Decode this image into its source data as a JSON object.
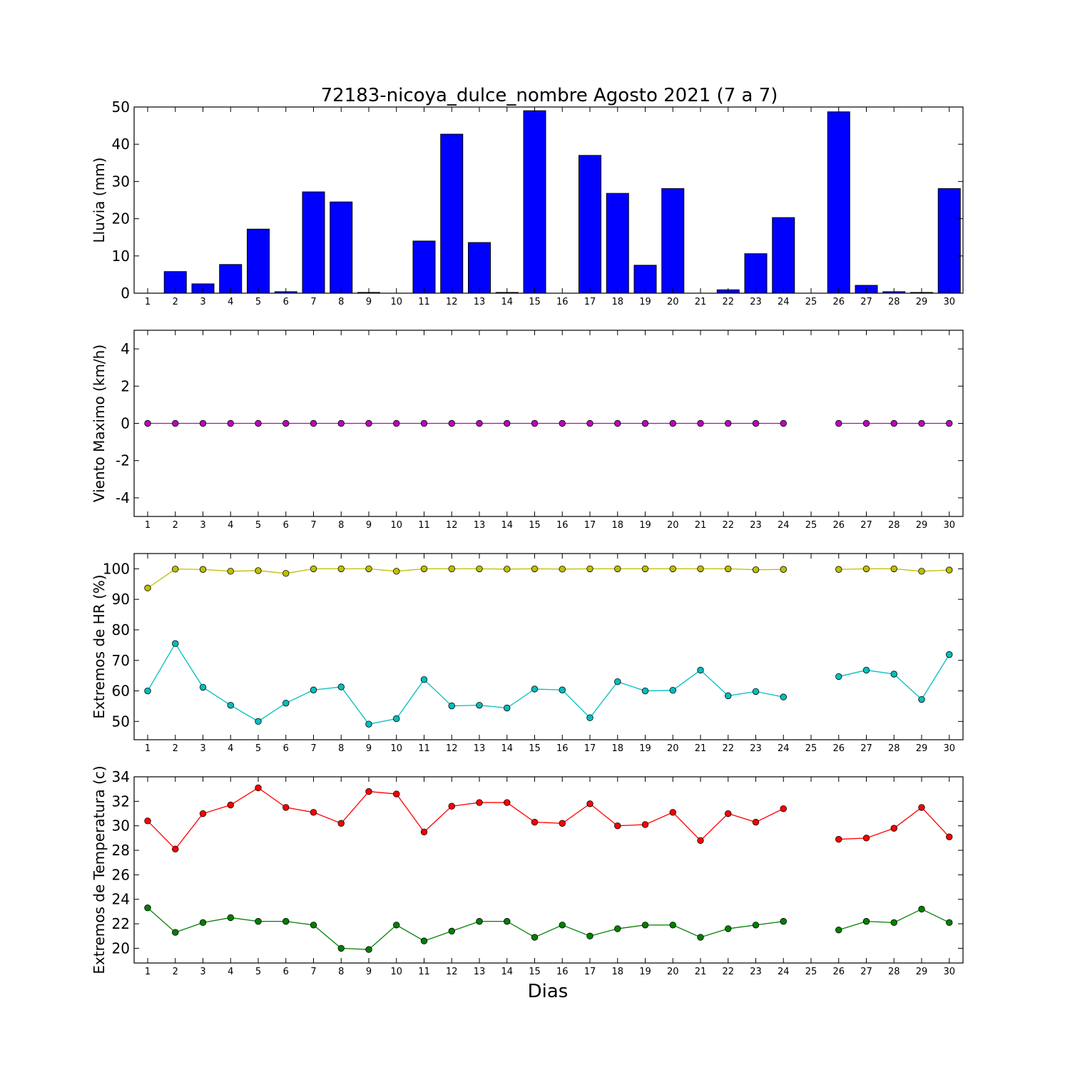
{
  "chart_data": [
    {
      "type": "bar",
      "title": "72183-nicoya_dulce_nombre Agosto 2021  (7 a 7)",
      "xlabel": "",
      "ylabel": "Lluvia (mm)",
      "ylim": [
        0,
        50
      ],
      "yticks": [
        0,
        10,
        20,
        30,
        40,
        50
      ],
      "categories": [
        "1",
        "2",
        "3",
        "4",
        "5",
        "6",
        "7",
        "8",
        "9",
        "10",
        "11",
        "12",
        "13",
        "14",
        "15",
        "16",
        "17",
        "18",
        "19",
        "20",
        "21",
        "22",
        "23",
        "24",
        "25",
        "26",
        "27",
        "28",
        "29",
        "30"
      ],
      "series": [
        {
          "color": "#0000ff",
          "values": [
            0,
            5.8,
            2.5,
            7.7,
            17.2,
            0.4,
            27.2,
            24.5,
            0.2,
            0,
            14.0,
            42.7,
            13.6,
            0.2,
            49.0,
            0,
            37.0,
            26.8,
            7.5,
            28.1,
            0,
            0.9,
            10.6,
            20.3,
            0,
            48.7,
            2.1,
            0.4,
            0.2,
            28.1
          ]
        }
      ]
    },
    {
      "type": "line",
      "xlabel": "",
      "ylabel": "Viento Maximo (km/h)",
      "ylim": [
        -5,
        5
      ],
      "yticks": [
        -4,
        -2,
        0,
        2,
        4
      ],
      "categories": [
        "1",
        "2",
        "3",
        "4",
        "5",
        "6",
        "7",
        "8",
        "9",
        "10",
        "11",
        "12",
        "13",
        "14",
        "15",
        "16",
        "17",
        "18",
        "19",
        "20",
        "21",
        "22",
        "23",
        "24",
        "25",
        "26",
        "27",
        "28",
        "29",
        "30"
      ],
      "series": [
        {
          "color": "#bf00bf",
          "values": [
            0,
            0,
            0,
            0,
            0,
            0,
            0,
            0,
            0,
            0,
            0,
            0,
            0,
            0,
            0,
            0,
            0,
            0,
            0,
            0,
            0,
            0,
            0,
            0,
            null,
            0,
            0,
            0,
            0,
            0
          ]
        }
      ]
    },
    {
      "type": "line",
      "xlabel": "",
      "ylabel": "Extremos de HR (%)",
      "ylim": [
        44,
        105
      ],
      "yticks": [
        50,
        60,
        70,
        80,
        90,
        100
      ],
      "categories": [
        "1",
        "2",
        "3",
        "4",
        "5",
        "6",
        "7",
        "8",
        "9",
        "10",
        "11",
        "12",
        "13",
        "14",
        "15",
        "16",
        "17",
        "18",
        "19",
        "20",
        "21",
        "22",
        "23",
        "24",
        "25",
        "26",
        "27",
        "28",
        "29",
        "30"
      ],
      "series": [
        {
          "color": "#bfbf00",
          "values": [
            93.7,
            99.9,
            99.8,
            99.2,
            99.4,
            98.5,
            100,
            100,
            100,
            99.2,
            100,
            100,
            100,
            99.9,
            100,
            99.9,
            100,
            100,
            100,
            100,
            100,
            100,
            99.7,
            99.8,
            null,
            99.8,
            100,
            100,
            99.2,
            99.6
          ]
        },
        {
          "color": "#00bfbf",
          "values": [
            60.0,
            75.5,
            61.2,
            55.3,
            50.0,
            56.0,
            60.3,
            61.3,
            49.1,
            50.9,
            63.7,
            55.1,
            55.3,
            54.4,
            60.6,
            60.3,
            51.2,
            63.0,
            60.0,
            60.2,
            66.8,
            58.4,
            59.8,
            58.0,
            null,
            64.7,
            66.8,
            65.5,
            57.2,
            71.9
          ]
        }
      ]
    },
    {
      "type": "line",
      "xlabel": "Dias",
      "ylabel": "Extremos de Temperatura (c)",
      "ylim": [
        18.8,
        34
      ],
      "yticks": [
        20,
        22,
        24,
        26,
        28,
        30,
        32,
        34
      ],
      "categories": [
        "1",
        "2",
        "3",
        "4",
        "5",
        "6",
        "7",
        "8",
        "9",
        "10",
        "11",
        "12",
        "13",
        "14",
        "15",
        "16",
        "17",
        "18",
        "19",
        "20",
        "21",
        "22",
        "23",
        "24",
        "25",
        "26",
        "27",
        "28",
        "29",
        "30"
      ],
      "series": [
        {
          "color": "#ff0000",
          "values": [
            30.4,
            28.1,
            31.0,
            31.7,
            33.1,
            31.5,
            31.1,
            30.2,
            32.8,
            32.6,
            29.5,
            31.6,
            31.9,
            31.9,
            30.3,
            30.2,
            31.8,
            30.0,
            30.1,
            31.1,
            28.8,
            31.0,
            30.3,
            31.4,
            null,
            28.9,
            29.0,
            29.8,
            31.5,
            29.1
          ]
        },
        {
          "color": "#008000",
          "values": [
            23.3,
            21.3,
            22.1,
            22.5,
            22.2,
            22.2,
            21.9,
            20.0,
            19.9,
            21.9,
            20.6,
            21.4,
            22.2,
            22.2,
            20.9,
            21.9,
            21.0,
            21.6,
            21.9,
            21.9,
            20.9,
            21.6,
            21.9,
            22.2,
            null,
            21.5,
            22.2,
            22.1,
            23.2,
            22.1
          ]
        }
      ]
    }
  ]
}
